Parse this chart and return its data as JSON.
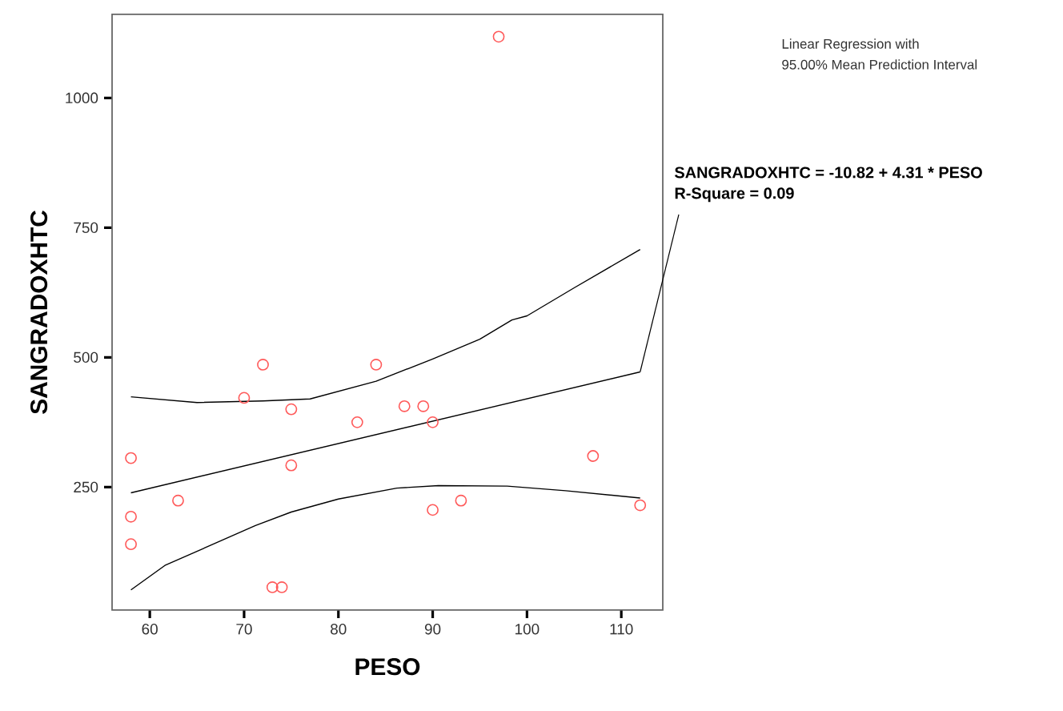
{
  "chart_data": {
    "type": "scatter",
    "xlabel": "PESO",
    "ylabel": "SANGRADOXHTC",
    "xlim": [
      56,
      114.4
    ],
    "ylim": [
      13,
      1161
    ],
    "xticks": [
      60,
      70,
      80,
      90,
      100,
      110
    ],
    "yticks": [
      250,
      500,
      750,
      1000
    ],
    "annotations": [
      "SANGRADOXHTC = -10.82 + 4.31 * PESO",
      {
        "text": "R-Square = 0.09",
        "x": 112,
        "y": 472
      },
      "Linear Regression with",
      "95.00% Mean Prediction Interval"
    ],
    "series": [
      {
        "color": "#ff5a5a",
        "marker": "circle",
        "x": [
          58,
          58,
          58,
          63,
          70,
          72,
          75,
          75,
          73,
          74,
          82,
          84,
          87,
          89,
          90,
          90,
          93,
          107,
          112,
          97
        ],
        "values": [
          306,
          193,
          140,
          224,
          422,
          486,
          400,
          292,
          57,
          57,
          375,
          486,
          406,
          406,
          375,
          206,
          224,
          310,
          215,
          1118
        ]
      },
      {
        "type": "line",
        "color": "#000000",
        "marker": "none",
        "x": [
          58,
          112
        ],
        "values": [
          239,
          472
        ]
      },
      {
        "type": "line",
        "color": "#000000",
        "marker": "none",
        "x": [
          58,
          65,
          72,
          77,
          84,
          90,
          95,
          98.4,
          100,
          105,
          112
        ],
        "values": [
          424,
          413,
          416,
          420,
          454,
          497,
          535,
          572,
          580,
          634,
          708
        ]
      },
      {
        "type": "line",
        "color": "#000000",
        "marker": "none",
        "x": [
          58,
          61.6,
          71.2,
          75,
          80,
          86.2,
          90.6,
          97.9,
          104.1,
          112
        ],
        "values": [
          52,
          99,
          176,
          202,
          227,
          248,
          253,
          252,
          243,
          229
        ]
      }
    ]
  }
}
